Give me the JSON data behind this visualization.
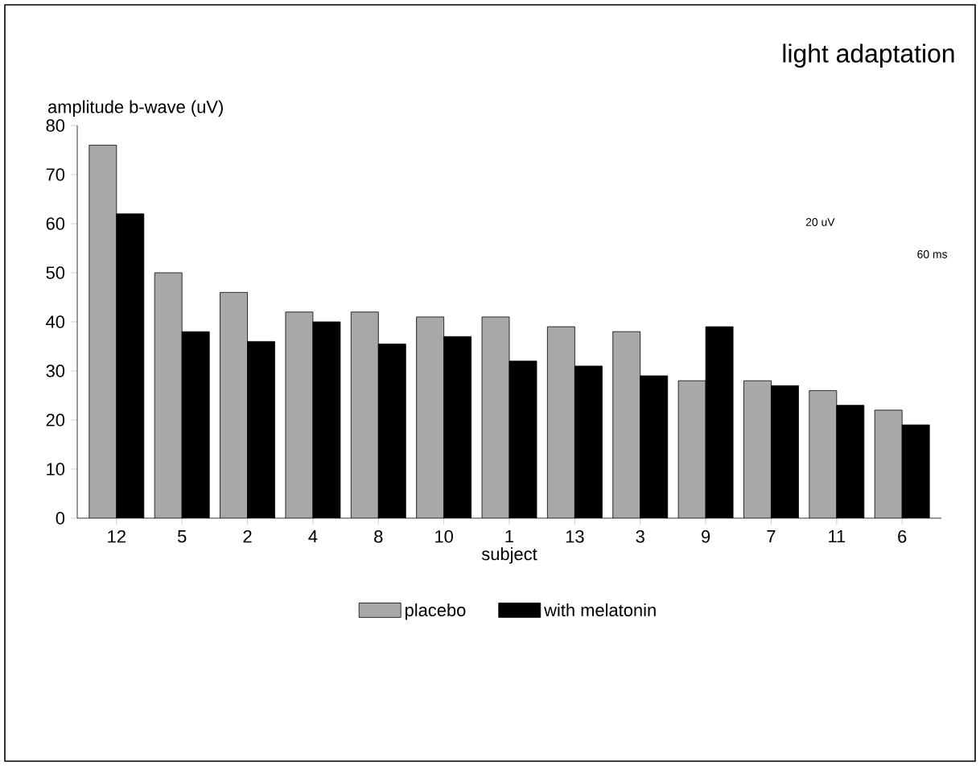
{
  "chart_data": {
    "type": "bar",
    "ylabel": "amplitude b-wave (uV)",
    "xlabel": "subject",
    "categories": [
      "12",
      "5",
      "2",
      "4",
      "8",
      "10",
      "1",
      "13",
      "3",
      "9",
      "7",
      "11",
      "6"
    ],
    "series": [
      {
        "name": "placebo",
        "color": "#a8a8a8",
        "values": [
          76,
          50,
          46,
          42,
          42,
          41,
          41,
          39,
          38,
          28,
          28,
          26,
          22
        ]
      },
      {
        "name": "with melatonin",
        "color": "#000000",
        "values": [
          62,
          38,
          36,
          40,
          35.5,
          37,
          32,
          31,
          29,
          39,
          27,
          23,
          19
        ]
      }
    ],
    "ylim": [
      0,
      80
    ],
    "yticks": [
      0,
      10,
      20,
      30,
      40,
      50,
      60,
      70,
      80
    ],
    "grid": false,
    "legend": "bottom",
    "annotations": [
      "light adaptation",
      "20 uV",
      "60 ms"
    ]
  }
}
